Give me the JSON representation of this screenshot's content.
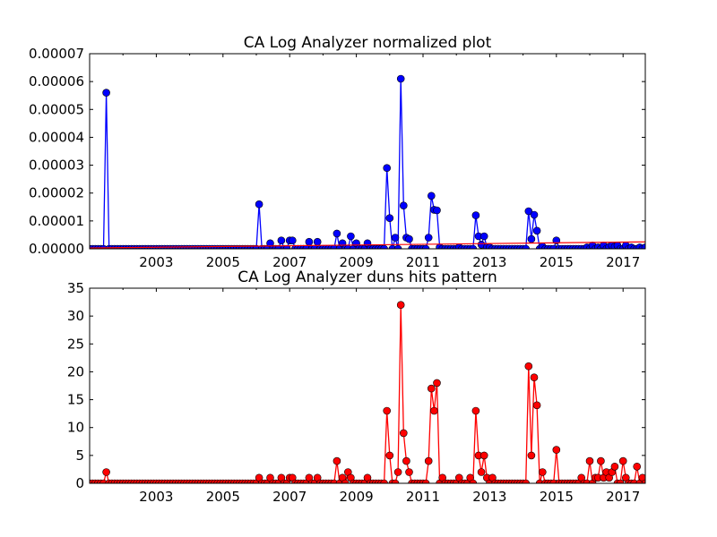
{
  "chart_data": [
    {
      "type": "line",
      "title": "CA Log Analyzer normalized plot",
      "xlabel": "",
      "ylabel": "",
      "x_range": [
        "2001-01-01",
        "2017-09-01"
      ],
      "ylim": [
        0,
        7e-05
      ],
      "x_ticks": [
        "2003",
        "2005",
        "2007",
        "2009",
        "2011",
        "2013",
        "2015",
        "2017"
      ],
      "y_ticks": [
        "0.00000",
        "0.00001",
        "0.00002",
        "0.00003",
        "0.00004",
        "0.00005",
        "0.00006",
        "0.00007"
      ],
      "grid": false,
      "colors": {
        "series": "#0000ff",
        "trend": "#ff0000"
      },
      "series": [
        {
          "marker": "circle",
          "points": [
            [
              "2001-07-01",
              5.6e-05
            ],
            [
              "2006-02-01",
              1.6e-05
            ],
            [
              "2006-06-01",
              2e-06
            ],
            [
              "2006-10-01",
              3e-06
            ],
            [
              "2007-01-01",
              3e-06
            ],
            [
              "2007-02-01",
              3e-06
            ],
            [
              "2007-08-01",
              2.5e-06
            ],
            [
              "2007-11-01",
              2.5e-06
            ],
            [
              "2008-06-01",
              5.5e-06
            ],
            [
              "2008-08-01",
              2e-06
            ],
            [
              "2008-11-01",
              4.5e-06
            ],
            [
              "2009-01-01",
              2e-06
            ],
            [
              "2009-05-01",
              2e-06
            ],
            [
              "2009-12-01",
              2.9e-05
            ],
            [
              "2010-01-01",
              1.1e-05
            ],
            [
              "2010-03-01",
              4e-06
            ],
            [
              "2010-05-01",
              6.1e-05
            ],
            [
              "2010-06-01",
              1.55e-05
            ],
            [
              "2010-07-01",
              4e-06
            ],
            [
              "2010-08-01",
              3.5e-06
            ],
            [
              "2011-03-01",
              4e-06
            ],
            [
              "2011-04-01",
              1.9e-05
            ],
            [
              "2011-05-01",
              1.4e-05
            ],
            [
              "2011-06-01",
              1.38e-05
            ],
            [
              "2011-07-01",
              5e-07
            ],
            [
              "2012-02-01",
              5e-07
            ],
            [
              "2012-08-01",
              1.2e-05
            ],
            [
              "2012-09-01",
              4.5e-06
            ],
            [
              "2012-10-01",
              1.5e-06
            ],
            [
              "2012-11-01",
              4.5e-06
            ],
            [
              "2012-12-01",
              5e-07
            ],
            [
              "2013-01-01",
              5e-07
            ],
            [
              "2014-03-01",
              1.35e-05
            ],
            [
              "2014-04-01",
              3.5e-06
            ],
            [
              "2014-05-01",
              1.22e-05
            ],
            [
              "2014-06-01",
              6.5e-06
            ],
            [
              "2014-08-01",
              8e-07
            ],
            [
              "2015-01-01",
              3e-06
            ],
            [
              "2015-12-01",
              5e-07
            ],
            [
              "2016-02-01",
              1.2e-06
            ],
            [
              "2016-04-01",
              5e-07
            ],
            [
              "2016-06-01",
              1.2e-06
            ],
            [
              "2016-08-01",
              7e-07
            ],
            [
              "2016-09-01",
              1.2e-06
            ],
            [
              "2016-10-01",
              7e-07
            ],
            [
              "2016-11-01",
              1.2e-06
            ],
            [
              "2017-02-01",
              1.2e-06
            ],
            [
              "2017-04-01",
              5e-07
            ],
            [
              "2017-07-01",
              5e-07
            ],
            [
              "2017-09-01",
              5e-07
            ]
          ]
        },
        {
          "style": "trend-line",
          "points": [
            [
              "2001-01-01",
              3e-07
            ],
            [
              "2017-09-01",
              2.5e-06
            ]
          ]
        }
      ]
    },
    {
      "type": "line",
      "title": "CA Log Analyzer duns hits pattern",
      "xlabel": "",
      "ylabel": "",
      "x_range": [
        "2001-01-01",
        "2017-09-01"
      ],
      "ylim": [
        0,
        35
      ],
      "x_ticks": [
        "2003",
        "2005",
        "2007",
        "2009",
        "2011",
        "2013",
        "2015",
        "2017"
      ],
      "y_ticks": [
        "0",
        "5",
        "10",
        "15",
        "20",
        "25",
        "30",
        "35"
      ],
      "grid": false,
      "colors": {
        "series": "#ff0000"
      },
      "series": [
        {
          "marker": "circle",
          "points": [
            [
              "2001-07-01",
              2
            ],
            [
              "2006-02-01",
              1
            ],
            [
              "2006-06-01",
              1
            ],
            [
              "2006-10-01",
              1
            ],
            [
              "2007-01-01",
              1
            ],
            [
              "2007-02-01",
              1
            ],
            [
              "2007-08-01",
              1
            ],
            [
              "2007-11-01",
              1
            ],
            [
              "2008-06-01",
              4
            ],
            [
              "2008-08-01",
              1
            ],
            [
              "2008-10-01",
              2
            ],
            [
              "2008-11-01",
              1
            ],
            [
              "2009-05-01",
              1
            ],
            [
              "2009-12-01",
              13
            ],
            [
              "2010-01-01",
              5
            ],
            [
              "2010-04-01",
              2
            ],
            [
              "2010-05-01",
              32
            ],
            [
              "2010-06-01",
              9
            ],
            [
              "2010-07-01",
              4
            ],
            [
              "2010-08-01",
              2
            ],
            [
              "2011-03-01",
              4
            ],
            [
              "2011-04-01",
              17
            ],
            [
              "2011-05-01",
              13
            ],
            [
              "2011-06-01",
              18
            ],
            [
              "2011-08-01",
              1
            ],
            [
              "2012-02-01",
              1
            ],
            [
              "2012-06-01",
              1
            ],
            [
              "2012-08-01",
              13
            ],
            [
              "2012-09-01",
              5
            ],
            [
              "2012-10-01",
              2
            ],
            [
              "2012-11-01",
              5
            ],
            [
              "2012-12-01",
              1
            ],
            [
              "2013-02-01",
              1
            ],
            [
              "2014-03-01",
              21
            ],
            [
              "2014-04-01",
              5
            ],
            [
              "2014-05-01",
              19
            ],
            [
              "2014-06-01",
              14
            ],
            [
              "2014-08-01",
              2
            ],
            [
              "2015-01-01",
              6
            ],
            [
              "2015-10-01",
              1
            ],
            [
              "2016-01-01",
              4
            ],
            [
              "2016-03-01",
              1
            ],
            [
              "2016-04-01",
              1
            ],
            [
              "2016-05-01",
              4
            ],
            [
              "2016-06-01",
              1
            ],
            [
              "2016-07-01",
              2
            ],
            [
              "2016-08-01",
              1
            ],
            [
              "2016-09-01",
              2
            ],
            [
              "2016-10-01",
              3
            ],
            [
              "2017-01-01",
              4
            ],
            [
              "2017-02-01",
              1
            ],
            [
              "2017-06-01",
              3
            ],
            [
              "2017-08-01",
              1
            ]
          ]
        }
      ]
    }
  ]
}
